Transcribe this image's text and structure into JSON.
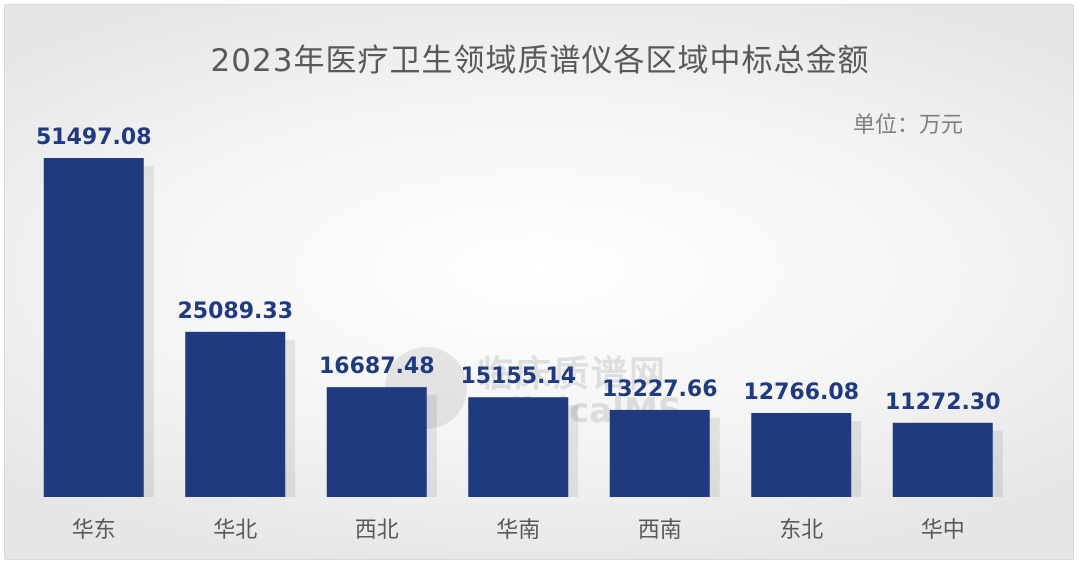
{
  "chart_data": {
    "type": "bar",
    "title": "2023年医疗卫生领域质谱仪各区域中标总金额",
    "unit_label": "单位：万元",
    "categories": [
      "华东",
      "华北",
      "西北",
      "华南",
      "西南",
      "东北",
      "华中"
    ],
    "values": [
      51497.08,
      25089.33,
      16687.48,
      15155.14,
      13227.66,
      12766.08,
      11272.3
    ],
    "data_labels": [
      "51497.08",
      "25089.33",
      "16687.48",
      "15155.14",
      "13227.66",
      "12766.08",
      "11272.30"
    ],
    "ylim": [
      0,
      51497.08
    ],
    "grid": false,
    "legend": "none",
    "colors": {
      "bar": "#203a80",
      "label": "#203a80",
      "category": "#595959"
    }
  },
  "watermark": {
    "line1": "临床质谱网",
    "line2": "ClinicalMS"
  }
}
